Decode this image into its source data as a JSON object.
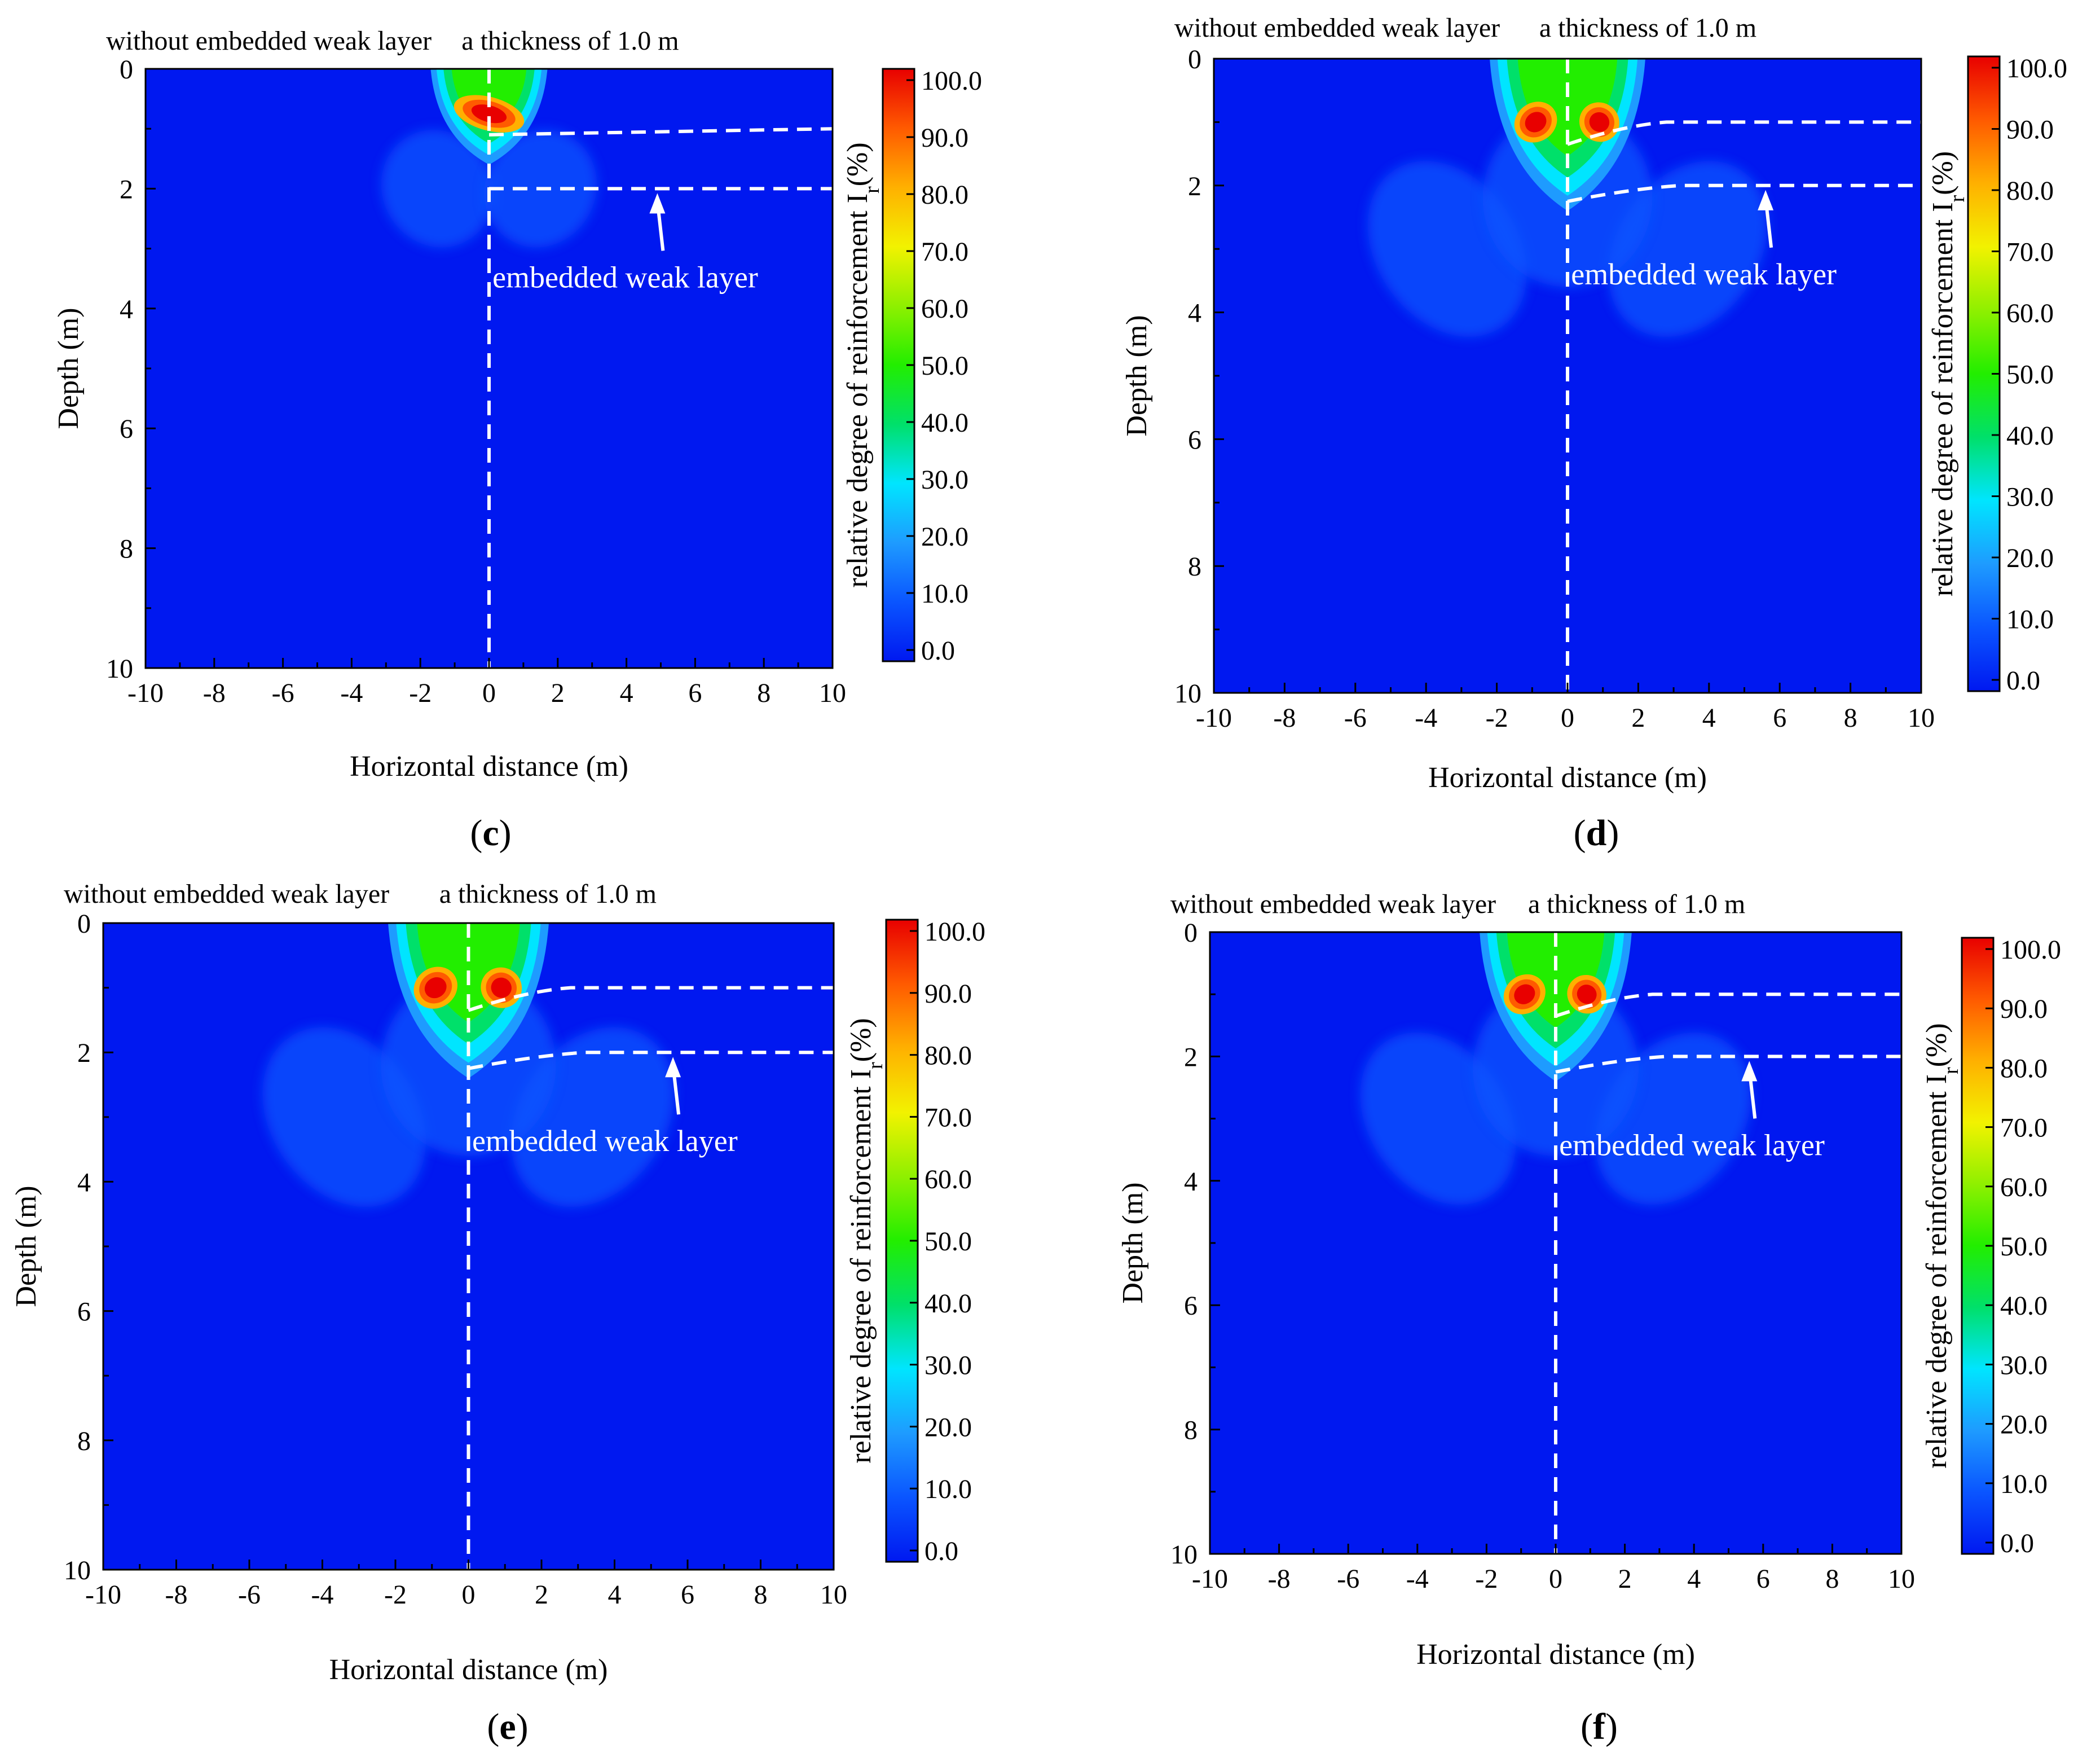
{
  "figure": {
    "colorbar_title": "relative degree of reinforcement I",
    "colorbar_title_sub": "r",
    "colorbar_title_unit": "(%)",
    "colorbar_ticks": [
      "100.0",
      "90.0",
      "80.0",
      "70.0",
      "60.0",
      "50.0",
      "40.0",
      "30.0",
      "20.0",
      "10.0",
      "0.0"
    ],
    "colormap": [
      "#0018f0",
      "#0a55ff",
      "#1e9bff",
      "#00e5ff",
      "#00e06a",
      "#22ee00",
      "#8ff000",
      "#f2f200",
      "#ffb000",
      "#ff5a00",
      "#e80000"
    ]
  },
  "chart_data": [
    {
      "type": "heatmap",
      "panel": "(c)",
      "panel_letter": "c",
      "title_left": "without embedded weak layer",
      "title_right": "a thickness of 1.0 m",
      "xlabel": "Horizontal distance  (m)",
      "ylabel": "Depth (m)",
      "xlim": [
        -10,
        10
      ],
      "ylim": [
        10,
        0
      ],
      "xticks": [
        "-10",
        "-8",
        "-6",
        "-4",
        "-2",
        "0",
        "2",
        "4",
        "6",
        "8",
        "10"
      ],
      "yticks": [
        "0",
        "2",
        "4",
        "6",
        "8",
        "10"
      ],
      "annotation": "embedded weak layer",
      "weak_layer_top_depth_m": 1.0,
      "weak_layer_bottom_depth_m": 2.0,
      "max_value_pct": 100.0
    },
    {
      "type": "heatmap",
      "panel": "(d)",
      "panel_letter": "d",
      "title_left": "without embedded weak layer",
      "title_right": "a thickness of 1.0 m",
      "xlabel": "Horizontal distance  (m)",
      "ylabel": "Depth (m)",
      "xlim": [
        -10,
        10
      ],
      "ylim": [
        10,
        0
      ],
      "xticks": [
        "-10",
        "-8",
        "-6",
        "-4",
        "-2",
        "0",
        "2",
        "4",
        "6",
        "8",
        "10"
      ],
      "yticks": [
        "0",
        "2",
        "4",
        "6",
        "8",
        "10"
      ],
      "annotation": "embedded weak layer",
      "weak_layer_top_depth_m": 1.0,
      "weak_layer_bottom_depth_m": 2.0,
      "max_value_pct": 100.0
    },
    {
      "type": "heatmap",
      "panel": "(e)",
      "panel_letter": "e",
      "title_left": "without embedded weak layer",
      "title_right": "a thickness of 1.0 m",
      "xlabel": "Horizontal distance  (m)",
      "ylabel": "Depth (m)",
      "xlim": [
        -10,
        10
      ],
      "ylim": [
        10,
        0
      ],
      "xticks": [
        "-10",
        "-8",
        "-6",
        "-4",
        "-2",
        "0",
        "2",
        "4",
        "6",
        "8",
        "10"
      ],
      "yticks": [
        "0",
        "2",
        "4",
        "6",
        "8",
        "10"
      ],
      "annotation": "embedded weak layer",
      "weak_layer_top_depth_m": 1.0,
      "weak_layer_bottom_depth_m": 2.0,
      "max_value_pct": 100.0
    },
    {
      "type": "heatmap",
      "panel": "(f)",
      "panel_letter": "f",
      "title_left": "without embedded weak layer",
      "title_right": "a thickness of 1.0 m",
      "xlabel": "Horizontal distance  (m)",
      "ylabel": "Depth (m)",
      "xlim": [
        -10,
        10
      ],
      "ylim": [
        10,
        0
      ],
      "xticks": [
        "-10",
        "-8",
        "-6",
        "-4",
        "-2",
        "0",
        "2",
        "4",
        "6",
        "8",
        "10"
      ],
      "yticks": [
        "0",
        "2",
        "4",
        "6",
        "8",
        "10"
      ],
      "annotation": "embedded weak layer",
      "weak_layer_top_depth_m": 1.0,
      "weak_layer_bottom_depth_m": 2.0,
      "max_value_pct": 100.0
    }
  ]
}
